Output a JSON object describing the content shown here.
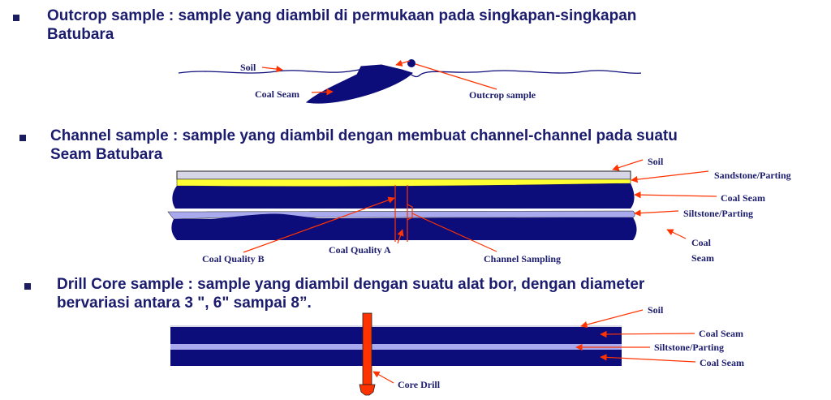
{
  "sections": [
    {
      "title_line1": "Outcrop sample : sample yang diambil di permukaan pada singkapan-singkapan",
      "title_line2": "Batubara",
      "labels": {
        "soil": "Soil",
        "coal_seam": "Coal Seam",
        "outcrop_sample": "Outcrop sample"
      }
    },
    {
      "title_line1": "Channel sample : sample yang diambil dengan membuat channel-channel pada suatu",
      "title_line2": "Seam Batubara",
      "labels": {
        "soil": "Soil",
        "sandstone_parting": "Sandstone/Parting",
        "coal_seam_upper": "Coal Seam",
        "siltstone_parting": "Siltstone/Parting",
        "coal_seam_lower_line1": "Coal",
        "coal_seam_lower_line2": "Seam",
        "coal_quality_a": "Coal  Quality  A",
        "coal_quality_b": "Coal  Quality  B",
        "channel_sampling": "Channel Sampling"
      }
    },
    {
      "title_line1": "Drill Core sample : sample yang diambil dengan suatu alat bor, dengan diameter",
      "title_line2": "bervariasi antara 3  \", 6\" sampai 8”.",
      "labels": {
        "soil": "Soil",
        "coal_seam_upper": "Coal Seam",
        "siltstone_parting": "Siltstone/Parting",
        "coal_seam_lower": "Coal Seam",
        "core_drill": "Core Drill"
      }
    }
  ],
  "colors": {
    "heading": "#1c1c6e",
    "coal": "#0c0c7a",
    "sandstone": "#ffff33",
    "siltstone": "#a9a9ee",
    "soil_layer": "#d6d6e6",
    "arrow": "#ff3300",
    "drill": "#ff3300"
  }
}
